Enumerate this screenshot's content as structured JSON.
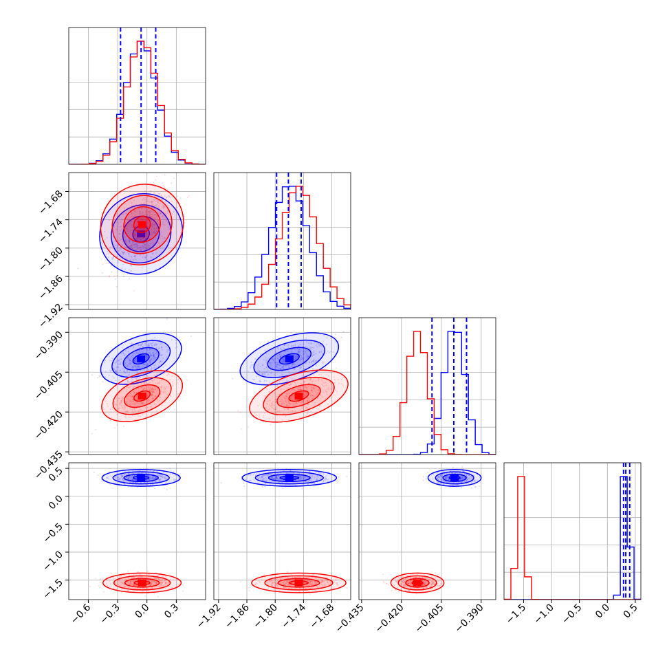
{
  "chart_data": {
    "type": "scatter",
    "subtype": "corner-plot",
    "parameters": 4,
    "grid": true,
    "colors": {
      "blue": "#0000ff",
      "red": "#ff0000"
    },
    "series": [
      {
        "color": "#0000ff",
        "means": [
          -0.06,
          -1.77,
          -0.4,
          0.33
        ],
        "sds": [
          0.16,
          0.04,
          0.004,
          0.06
        ],
        "quantile_lines": [
          [
            -0.27,
            -0.06,
            0.09
          ],
          [
            -1.797,
            -1.772,
            -1.745
          ],
          [
            -0.4085,
            -0.4003,
            -0.3955
          ],
          [
            0.29,
            0.33,
            0.4
          ]
        ]
      },
      {
        "color": "#ff0000",
        "means": [
          -0.05,
          -1.75,
          -0.414,
          -1.55
        ],
        "sds": [
          0.16,
          0.04,
          0.004,
          0.07
        ]
      }
    ],
    "axes": [
      {
        "range": [
          -0.8,
          0.6
        ],
        "ticks": [
          -0.6,
          -0.3,
          0.0,
          0.3
        ],
        "tick_labels": [
          "−0.6",
          "−0.3",
          "0.0",
          "0.3"
        ]
      },
      {
        "range": [
          -1.93,
          -1.64
        ],
        "ticks": [
          -1.92,
          -1.86,
          -1.8,
          -1.74,
          -1.68
        ],
        "tick_labels": [
          "−1.92",
          "−1.86",
          "−1.80",
          "−1.74",
          "−1.68"
        ]
      },
      {
        "range": [
          -0.436,
          -0.3845
        ],
        "ticks": [
          -0.435,
          -0.42,
          -0.405,
          -0.39
        ],
        "tick_labels": [
          "−0.435",
          "−0.420",
          "−0.405",
          "−0.390"
        ]
      },
      {
        "range": [
          -1.85,
          0.6
        ],
        "ticks": [
          -1.5,
          -1.0,
          -0.5,
          0.0,
          0.5
        ],
        "tick_labels": [
          "−1.5",
          "−1.0",
          "−0.5",
          "0.0",
          "0.5"
        ]
      }
    ]
  }
}
